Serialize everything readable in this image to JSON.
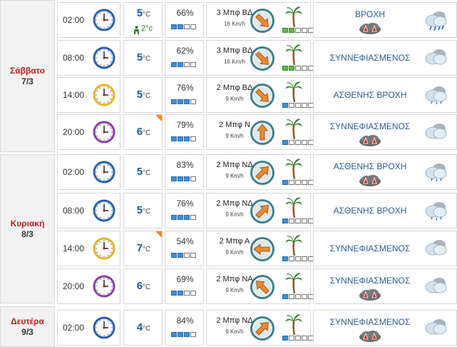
{
  "days": [
    {
      "name": "Σάββατο",
      "date": "7/3"
    },
    {
      "name": "Κυριακή",
      "date": "8/3"
    },
    {
      "name": "Δευτέρα",
      "date": "9/3"
    }
  ],
  "temp_unit": "°C",
  "rows": [
    {
      "time": "02:00",
      "clock": "blue",
      "temp": "5",
      "feels": "2°c",
      "flag": false,
      "humidity": "66%",
      "hum_level": 2,
      "wind": "3 Μπφ ΒΔ",
      "wind_kmh": "16 Km/h",
      "wind_dir_deg": 135,
      "wind_level": 2,
      "wind_color": "g",
      "desc": "ΒΡΟΧΗ",
      "warning": true,
      "weather_icon": "rain-cloud-icon"
    },
    {
      "time": "08:00",
      "clock": "blue",
      "temp": "5",
      "feels": "",
      "flag": false,
      "humidity": "62%",
      "hum_level": 2,
      "wind": "3 Μπφ ΒΔ",
      "wind_kmh": "16 Km/h",
      "wind_dir_deg": 135,
      "wind_level": 2,
      "wind_color": "g",
      "desc": "ΣΥΝΝΕΦΙΑΣΜΕΝΟΣ",
      "warning": false,
      "weather_icon": "cloud-icon"
    },
    {
      "time": "14:00",
      "clock": "yellow",
      "temp": "5",
      "feels": "",
      "flag": false,
      "humidity": "76%",
      "hum_level": 3,
      "wind": "2 Μπφ ΒΔ",
      "wind_kmh": "9 Km/h",
      "wind_dir_deg": 135,
      "wind_level": 1,
      "wind_color": "b",
      "desc": "ΑΣΘΕΝΗΣ ΒΡΟΧΗ",
      "warning": false,
      "weather_icon": "light-rain-cloud-icon"
    },
    {
      "time": "20:00",
      "clock": "purple",
      "temp": "6",
      "feels": "",
      "flag": true,
      "humidity": "79%",
      "hum_level": 3,
      "wind": "2 Μπφ Ν",
      "wind_kmh": "9 Km/h",
      "wind_dir_deg": 0,
      "wind_level": 1,
      "wind_color": "b",
      "desc": "ΣΥΝΝΕΦΙΑΣΜΕΝΟΣ",
      "warning": true,
      "weather_icon": "cloud-icon"
    },
    {
      "time": "02:00",
      "clock": "blue",
      "temp": "5",
      "feels": "",
      "flag": false,
      "humidity": "83%",
      "hum_level": 3,
      "wind": "2 Μπφ ΝΔ",
      "wind_kmh": "9 Km/h",
      "wind_dir_deg": 45,
      "wind_level": 1,
      "wind_color": "b",
      "desc": "ΑΣΘΕΝΗΣ ΒΡΟΧΗ",
      "warning": true,
      "weather_icon": "light-rain-cloud-icon"
    },
    {
      "time": "08:00",
      "clock": "blue",
      "temp": "5",
      "feels": "",
      "flag": false,
      "humidity": "76%",
      "hum_level": 3,
      "wind": "2 Μπφ ΝΔ",
      "wind_kmh": "9 Km/h",
      "wind_dir_deg": 45,
      "wind_level": 1,
      "wind_color": "b",
      "desc": "ΑΣΘΕΝΗΣ ΒΡΟΧΗ",
      "warning": false,
      "weather_icon": "light-rain-cloud-icon"
    },
    {
      "time": "14:00",
      "clock": "yellow",
      "temp": "7",
      "feels": "",
      "flag": true,
      "humidity": "54%",
      "hum_level": 2,
      "wind": "2 Μπφ Α",
      "wind_kmh": "9 Km/h",
      "wind_dir_deg": 270,
      "wind_level": 1,
      "wind_color": "b",
      "desc": "ΣΥΝΝΕΦΙΑΣΜΕΝΟΣ",
      "warning": false,
      "weather_icon": "cloud-icon"
    },
    {
      "time": "20:00",
      "clock": "purple",
      "temp": "6",
      "feels": "",
      "flag": false,
      "humidity": "69%",
      "hum_level": 2,
      "wind": "2 Μπφ ΝΑ",
      "wind_kmh": "9 Km/h",
      "wind_dir_deg": 315,
      "wind_level": 1,
      "wind_color": "b",
      "desc": "ΣΥΝΝΕΦΙΑΣΜΕΝΟΣ",
      "warning": true,
      "weather_icon": "cloud-icon"
    },
    {
      "time": "02:00",
      "clock": "blue",
      "temp": "4",
      "feels": "",
      "flag": false,
      "humidity": "84%",
      "hum_level": 3,
      "wind": "2 Μπφ ΝΔ",
      "wind_kmh": "9 Km/h",
      "wind_dir_deg": 45,
      "wind_level": 1,
      "wind_color": "b",
      "desc": "ΣΥΝΝΕΦΙΑΣΜΕΝΟΣ",
      "warning": true,
      "weather_icon": "cloud-icon"
    }
  ],
  "colors": {
    "clock_blue": "#2b5fa8",
    "clock_yellow": "#e6b422",
    "clock_purple": "#8a3fa8",
    "arrow": "#f08a2a",
    "compass": "#3e7f8c"
  }
}
